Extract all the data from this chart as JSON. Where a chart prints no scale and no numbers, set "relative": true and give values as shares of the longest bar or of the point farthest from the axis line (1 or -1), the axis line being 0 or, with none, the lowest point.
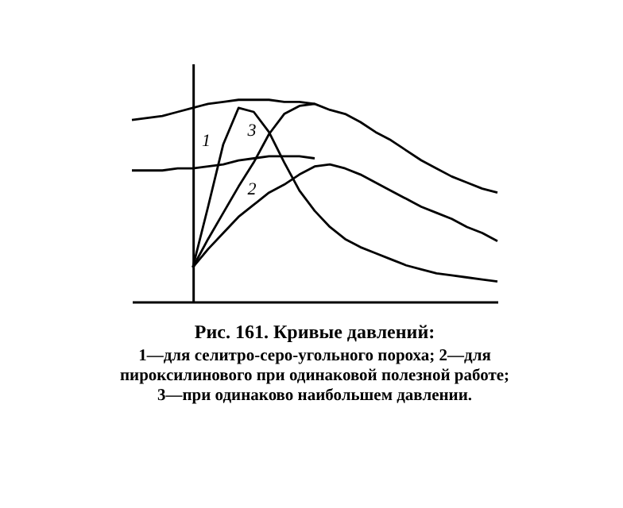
{
  "chart_data": {
    "type": "line",
    "relative": true,
    "title": "Рис. 161. Кривые давлений:",
    "annotations": [
      "1—для селитро-серо-угольного пороха; 2—для пироксилинового при одинаковой полезной работе; 3—при одинаково наибольшем давлении."
    ],
    "tick_labels": false,
    "grid": false,
    "legend": false,
    "marker": "none",
    "line_style": "solid",
    "categories": [
      null,
      null,
      null,
      null,
      null,
      null,
      null,
      null,
      null,
      null,
      null,
      null,
      null,
      null,
      null,
      null,
      null,
      null,
      null,
      null,
      null,
      null,
      null,
      null,
      null
    ],
    "series": [
      {
        "name": "1",
        "color": "#000000",
        "values": [
          null,
          null,
          null,
          null,
          0.17,
          0.47,
          0.78,
          0.96,
          0.94,
          0.84,
          0.69,
          0.55,
          0.45,
          0.37,
          0.31,
          0.27,
          0.24,
          0.21,
          0.18,
          0.16,
          0.14,
          0.13,
          0.12,
          0.11,
          0.1
        ]
      },
      {
        "name": "2",
        "color": "#000000",
        "values": [
          null,
          null,
          null,
          null,
          0.17,
          0.26,
          0.34,
          0.42,
          0.48,
          0.54,
          0.58,
          0.63,
          0.67,
          0.68,
          0.66,
          0.63,
          0.59,
          0.55,
          0.51,
          0.47,
          0.44,
          0.41,
          0.37,
          0.34,
          0.3
        ]
      },
      {
        "name": "3",
        "color": "#000000",
        "values": [
          null,
          null,
          null,
          null,
          0.17,
          0.31,
          0.44,
          0.57,
          0.69,
          0.83,
          0.93,
          0.97,
          0.98,
          0.95,
          0.93,
          0.89,
          0.84,
          0.8,
          0.75,
          0.7,
          0.66,
          0.62,
          0.59,
          0.56,
          0.54
        ]
      },
      {
        "color": "#000000",
        "values": [
          0.9,
          0.91,
          0.92,
          0.94,
          0.96,
          0.98,
          0.99,
          1.0,
          1.0,
          1.0,
          0.99,
          0.99,
          0.98,
          null,
          null,
          null,
          null,
          null,
          null,
          null,
          null,
          null,
          null,
          null,
          null
        ]
      },
      {
        "color": "#000000",
        "values": [
          0.65,
          0.65,
          0.65,
          0.66,
          0.66,
          0.67,
          0.68,
          0.7,
          0.71,
          0.72,
          0.72,
          0.72,
          0.71,
          null,
          null,
          null,
          null,
          null,
          null,
          null,
          null,
          null,
          null,
          null,
          null
        ]
      }
    ]
  }
}
